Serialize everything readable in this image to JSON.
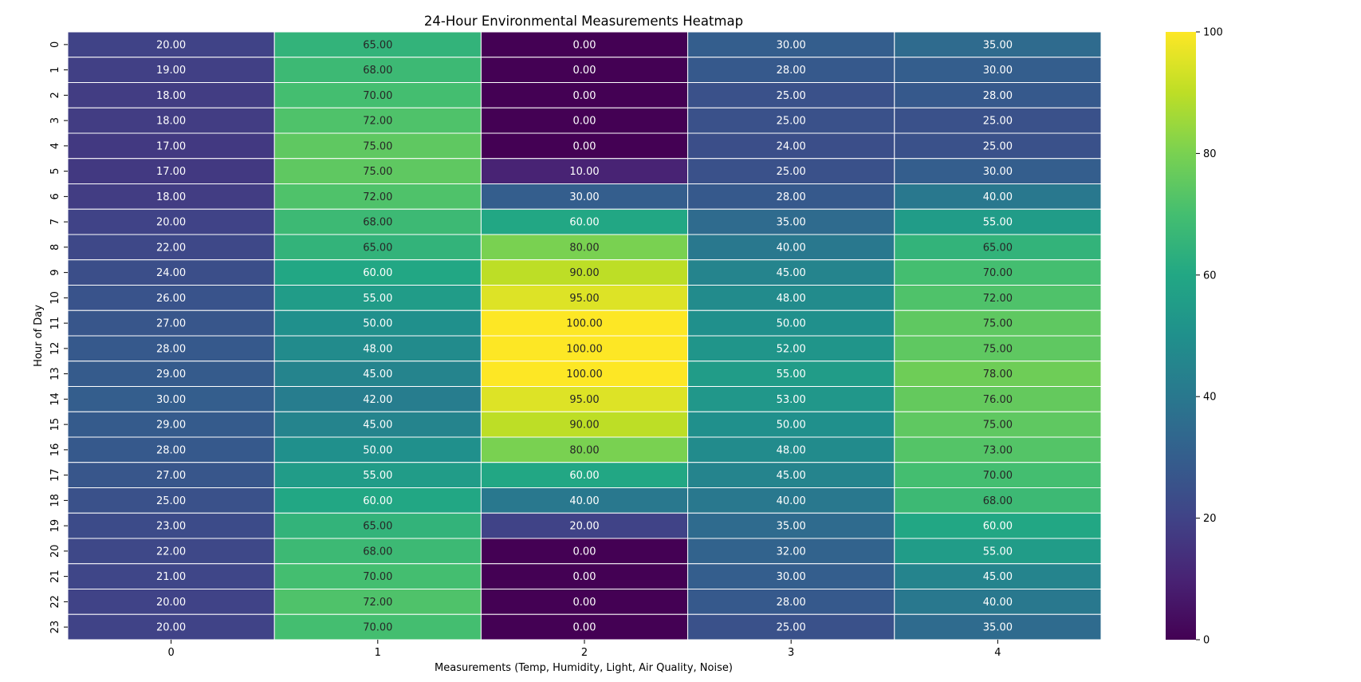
{
  "chart_data": {
    "type": "heatmap",
    "title": "24-Hour Environmental Measurements Heatmap",
    "xlabel": "Measurements (Temp, Humidity, Light, Air Quality, Noise)",
    "ylabel": "Hour of Day",
    "x_ticks": [
      "0",
      "1",
      "2",
      "3",
      "4"
    ],
    "y_ticks": [
      "0",
      "1",
      "2",
      "3",
      "4",
      "5",
      "6",
      "7",
      "8",
      "9",
      "10",
      "11",
      "12",
      "13",
      "14",
      "15",
      "16",
      "17",
      "18",
      "19",
      "20",
      "21",
      "22",
      "23"
    ],
    "values": [
      [
        20,
        65,
        0,
        30,
        35
      ],
      [
        19,
        68,
        0,
        28,
        30
      ],
      [
        18,
        70,
        0,
        25,
        28
      ],
      [
        18,
        72,
        0,
        25,
        25
      ],
      [
        17,
        75,
        0,
        24,
        25
      ],
      [
        17,
        75,
        10,
        25,
        30
      ],
      [
        18,
        72,
        30,
        28,
        40
      ],
      [
        20,
        68,
        60,
        35,
        55
      ],
      [
        22,
        65,
        80,
        40,
        65
      ],
      [
        24,
        60,
        90,
        45,
        70
      ],
      [
        26,
        55,
        95,
        48,
        72
      ],
      [
        27,
        50,
        100,
        50,
        75
      ],
      [
        28,
        48,
        100,
        52,
        75
      ],
      [
        29,
        45,
        100,
        55,
        78
      ],
      [
        30,
        42,
        95,
        53,
        76
      ],
      [
        29,
        45,
        90,
        50,
        75
      ],
      [
        28,
        50,
        80,
        48,
        73
      ],
      [
        27,
        55,
        60,
        45,
        70
      ],
      [
        25,
        60,
        40,
        40,
        68
      ],
      [
        23,
        65,
        20,
        35,
        60
      ],
      [
        22,
        68,
        0,
        32,
        55
      ],
      [
        21,
        70,
        0,
        30,
        45
      ],
      [
        20,
        72,
        0,
        28,
        40
      ],
      [
        20,
        70,
        0,
        25,
        35
      ]
    ],
    "value_format": "2 decimals",
    "colormap": "viridis",
    "colorbar": {
      "min": 0,
      "max": 100,
      "ticks": [
        "0",
        "20",
        "40",
        "60",
        "80",
        "100"
      ]
    },
    "grid": false,
    "cell_separator_color": "#ffffff"
  }
}
